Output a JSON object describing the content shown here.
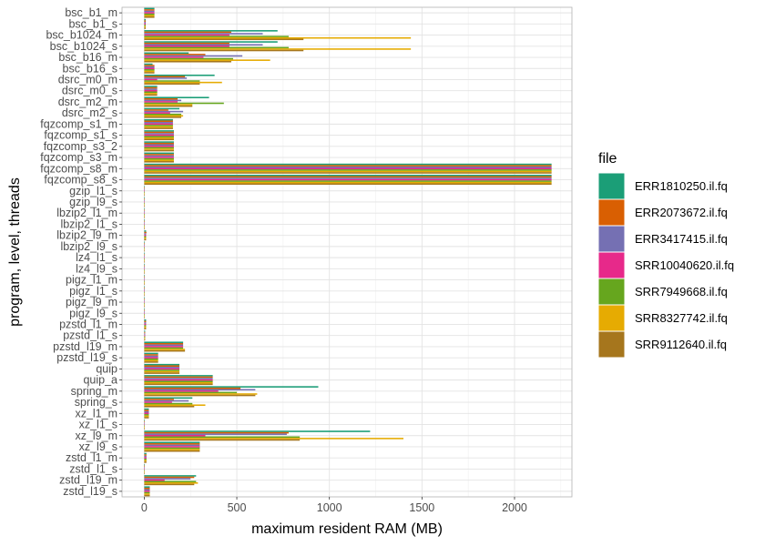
{
  "chart_data": {
    "type": "bar",
    "orientation": "horizontal",
    "xlabel": "maximum resident RAM (MB)",
    "ylabel": "program, level, threads",
    "xlim": [
      -120,
      2310
    ],
    "xticks": [
      0,
      500,
      1000,
      1500,
      2000
    ],
    "grid": true,
    "legend": {
      "title": "file",
      "position": "right"
    },
    "categories": [
      "bsc_b1_m",
      "bsc_b1_s",
      "bsc_b1024_m",
      "bsc_b1024_s",
      "bsc_b16_m",
      "bsc_b16_s",
      "dsrc_m0_m",
      "dsrc_m0_s",
      "dsrc_m2_m",
      "dsrc_m2_s",
      "fqzcomp_s1_m",
      "fqzcomp_s1_s",
      "fqzcomp_s3_2",
      "fqzcomp_s3_m",
      "fqzcomp_s8_m",
      "fqzcomp_s8_s",
      "gzip_l1_s",
      "gzip_l9_s",
      "lbzip2_l1_m",
      "lbzip2_l1_s",
      "lbzip2_l9_m",
      "lbzip2_l9_s",
      "lz4_l1_s",
      "lz4_l9_s",
      "pigz_l1_m",
      "pigz_l1_s",
      "pigz_l9_m",
      "pigz_l9_s",
      "pzstd_l1_m",
      "pzstd_l1_s",
      "pzstd_l19_m",
      "pzstd_l19_s",
      "quip",
      "quip_a",
      "spring_m",
      "spring_s",
      "xz_l1_m",
      "xz_l1_s",
      "xz_l9_m",
      "xz_l9_s",
      "zstd_l1_m",
      "zstd_l1_s",
      "zstd_l19_m",
      "zstd_l19_s"
    ],
    "series": [
      {
        "name": "ERR1810250.il.fq",
        "color": "#1B9E77",
        "values": [
          55,
          8,
          720,
          720,
          240,
          45,
          380,
          70,
          350,
          190,
          155,
          160,
          160,
          160,
          2200,
          2200,
          2,
          2,
          3,
          2,
          10,
          3,
          2,
          2,
          3,
          2,
          3,
          2,
          10,
          5,
          210,
          75,
          190,
          370,
          940,
          260,
          25,
          3,
          1220,
          300,
          12,
          3,
          280,
          30
        ]
      },
      {
        "name": "ERR2073672.il.fq",
        "color": "#D95F02",
        "values": [
          55,
          8,
          470,
          460,
          330,
          55,
          220,
          70,
          180,
          130,
          155,
          160,
          160,
          160,
          2200,
          2200,
          2,
          2,
          3,
          2,
          12,
          3,
          2,
          2,
          3,
          2,
          3,
          2,
          10,
          5,
          210,
          75,
          190,
          370,
          520,
          160,
          25,
          3,
          780,
          300,
          12,
          3,
          270,
          30
        ]
      },
      {
        "name": "ERR3417415.il.fq",
        "color": "#7570B3",
        "values": [
          55,
          8,
          640,
          640,
          530,
          55,
          230,
          70,
          200,
          210,
          155,
          160,
          160,
          160,
          2200,
          2200,
          2,
          2,
          3,
          2,
          10,
          3,
          2,
          2,
          3,
          2,
          3,
          2,
          10,
          5,
          210,
          75,
          190,
          370,
          600,
          240,
          25,
          3,
          770,
          300,
          12,
          3,
          250,
          30
        ]
      },
      {
        "name": "SRR10040620.il.fq",
        "color": "#E7298A",
        "values": [
          55,
          8,
          460,
          460,
          320,
          55,
          70,
          70,
          180,
          140,
          155,
          160,
          160,
          160,
          2200,
          2200,
          2,
          2,
          3,
          2,
          10,
          3,
          2,
          2,
          3,
          2,
          3,
          2,
          10,
          5,
          210,
          75,
          190,
          370,
          400,
          150,
          25,
          3,
          330,
          300,
          12,
          3,
          110,
          30
        ]
      },
      {
        "name": "SRR7949668.il.fq",
        "color": "#66A61E",
        "values": [
          55,
          8,
          780,
          780,
          480,
          55,
          300,
          70,
          430,
          200,
          155,
          160,
          160,
          160,
          2200,
          2200,
          2,
          2,
          3,
          2,
          10,
          3,
          2,
          2,
          3,
          2,
          3,
          2,
          10,
          5,
          210,
          75,
          190,
          370,
          500,
          260,
          25,
          3,
          840,
          300,
          12,
          3,
          280,
          30
        ]
      },
      {
        "name": "SRR8327742.il.fq",
        "color": "#E6AB02",
        "values": [
          55,
          8,
          1440,
          1440,
          680,
          55,
          420,
          70,
          260,
          210,
          155,
          160,
          160,
          160,
          2200,
          2200,
          2,
          2,
          3,
          2,
          10,
          3,
          2,
          2,
          3,
          2,
          3,
          2,
          10,
          5,
          220,
          75,
          190,
          370,
          610,
          330,
          25,
          3,
          1400,
          300,
          12,
          3,
          290,
          30
        ]
      },
      {
        "name": "SRR9112640.il.fq",
        "color": "#A6761D",
        "values": [
          55,
          8,
          860,
          860,
          470,
          55,
          300,
          70,
          260,
          200,
          155,
          160,
          160,
          160,
          2200,
          2200,
          2,
          2,
          3,
          2,
          10,
          3,
          2,
          2,
          3,
          2,
          3,
          2,
          10,
          5,
          220,
          75,
          190,
          370,
          600,
          270,
          25,
          3,
          840,
          300,
          12,
          3,
          270,
          30
        ]
      }
    ]
  }
}
